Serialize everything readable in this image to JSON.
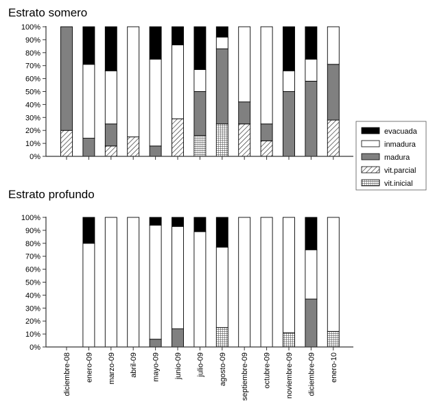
{
  "chart_data": [
    {
      "type": "bar",
      "stacked": true,
      "title": "Estrato somero",
      "categories": [
        "diciembre-08",
        "enero-09",
        "marzo-09",
        "abril-09",
        "mayo-09",
        "junio-09",
        "julio-09",
        "agosto-09",
        "septiembre-09",
        "octubre-09",
        "noviembre-09",
        "diciembre-09",
        "enero-10"
      ],
      "yticks": [
        "0%",
        "10%",
        "20%",
        "30%",
        "40%",
        "50%",
        "60%",
        "70%",
        "80%",
        "90%",
        "100%"
      ],
      "ylim": [
        0,
        100
      ],
      "xlabel": "",
      "ylabel": "",
      "series": [
        {
          "name": "vit.inicial",
          "values": [
            0,
            0,
            0,
            0,
            0,
            0,
            16,
            25,
            0,
            0,
            0,
            0,
            0
          ]
        },
        {
          "name": "vit.parcial",
          "values": [
            20,
            0,
            8,
            15,
            0,
            29,
            0,
            0,
            25,
            12,
            0,
            0,
            28
          ]
        },
        {
          "name": "madura",
          "values": [
            80,
            14,
            17,
            0,
            8,
            0,
            34,
            58,
            17,
            13,
            50,
            58,
            43
          ]
        },
        {
          "name": "inmadura",
          "values": [
            0,
            57,
            41,
            85,
            67,
            57,
            17,
            9,
            58,
            75,
            16,
            17,
            29
          ]
        },
        {
          "name": "evacuada",
          "values": [
            0,
            29,
            34,
            0,
            25,
            14,
            33,
            8,
            0,
            0,
            34,
            25,
            0
          ]
        }
      ]
    },
    {
      "type": "bar",
      "stacked": true,
      "title": "Estrato profundo",
      "categories": [
        "diciembre-08",
        "enero-09",
        "marzo-09",
        "abril-09",
        "mayo-09",
        "junio-09",
        "julio-09",
        "agosto-09",
        "septiembre-09",
        "octubre-09",
        "noviembre-09",
        "diciembre-09",
        "enero-10"
      ],
      "yticks": [
        "0%",
        "10%",
        "20%",
        "30%",
        "40%",
        "50%",
        "60%",
        "70%",
        "80%",
        "90%",
        "100%"
      ],
      "ylim": [
        0,
        100
      ],
      "xlabel": "",
      "ylabel": "",
      "series": [
        {
          "name": "vit.inicial",
          "values": [
            0,
            0,
            0,
            0,
            0,
            0,
            0,
            15,
            0,
            0,
            11,
            0,
            12
          ]
        },
        {
          "name": "vit.parcial",
          "values": [
            0,
            0,
            0,
            0,
            0,
            0,
            0,
            0,
            0,
            0,
            0,
            0,
            0
          ]
        },
        {
          "name": "madura",
          "values": [
            0,
            0,
            0,
            0,
            6,
            14,
            0,
            0,
            0,
            0,
            0,
            37,
            0
          ]
        },
        {
          "name": "inmadura",
          "values": [
            0,
            80,
            100,
            100,
            88,
            79,
            89,
            62,
            100,
            100,
            89,
            38,
            88
          ]
        },
        {
          "name": "evacuada",
          "values": [
            0,
            20,
            0,
            0,
            6,
            7,
            11,
            23,
            0,
            0,
            0,
            25,
            0
          ]
        }
      ]
    }
  ],
  "legend": {
    "placement": "right",
    "items": [
      {
        "name": "evacuada",
        "pattern": "black"
      },
      {
        "name": "inmadura",
        "pattern": "white"
      },
      {
        "name": "madura",
        "pattern": "gray"
      },
      {
        "name": "vit.parcial",
        "pattern": "hatch"
      },
      {
        "name": "vit.inicial",
        "pattern": "grid"
      }
    ]
  },
  "colors": {
    "evacuada": "#000000",
    "inmadura": "#ffffff",
    "madura": "#808080",
    "axis": "#333333"
  }
}
